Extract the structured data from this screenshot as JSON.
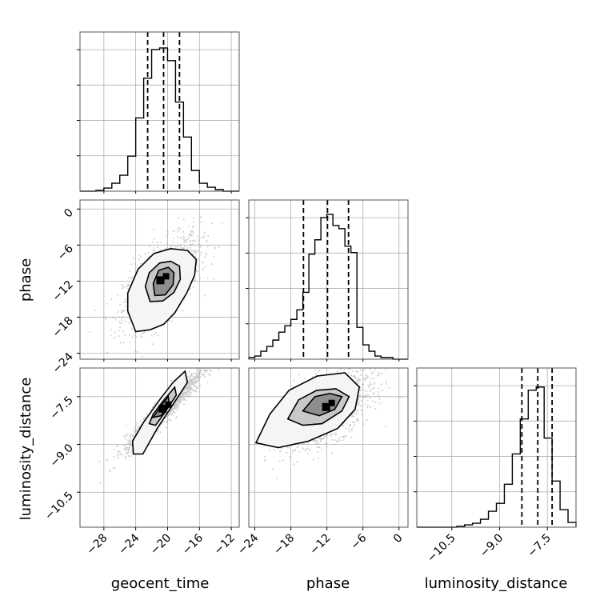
{
  "chart_data": {
    "type": "corner",
    "parameters": [
      "geocent_time",
      "phase",
      "luminosity_distance"
    ],
    "ranges": {
      "geocent_time": [
        -31,
        -11
      ],
      "phase": [
        -25,
        1.5
      ],
      "luminosity_distance": [
        -11.6,
        -6.6
      ]
    },
    "ticks": {
      "geocent_time": [
        -28,
        -24,
        -20,
        -16,
        -12
      ],
      "phase": [
        -24,
        -18,
        -12,
        -6,
        0
      ],
      "luminosity_distance": [
        -10.5,
        -9.0,
        -7.5
      ]
    },
    "tick_labels": {
      "geocent_time": [
        "−28",
        "−24",
        "−20",
        "−16",
        "−12"
      ],
      "phase": [
        "−24",
        "−18",
        "−12",
        "−6",
        "0"
      ],
      "luminosity_distance": [
        "−10.5",
        "−9.0",
        "−7.5"
      ]
    },
    "quantiles": {
      "geocent_time": [
        -22.5,
        -20.5,
        -18.5
      ],
      "phase": [
        -15.9,
        -11.9,
        -8.4
      ],
      "luminosity_distance": [
        -8.3,
        -7.8,
        -7.35
      ]
    },
    "histograms": {
      "geocent_time": {
        "edges": [
          -31,
          -30,
          -29,
          -28,
          -27,
          -26,
          -25,
          -24,
          -23,
          -22,
          -21,
          -20,
          -19,
          -18,
          -17,
          -16,
          -15,
          -14,
          -13,
          -12,
          -11
        ],
        "counts": [
          0,
          0,
          0.005,
          0.02,
          0.05,
          0.1,
          0.22,
          0.46,
          0.71,
          0.89,
          0.9,
          0.82,
          0.56,
          0.34,
          0.13,
          0.05,
          0.025,
          0.01,
          0,
          0
        ]
      },
      "phase": {
        "edges": [
          -25,
          -24,
          -23,
          -22,
          -21,
          -20,
          -19,
          -18,
          -17,
          -16,
          -15,
          -14,
          -13,
          -12,
          -11,
          -10,
          -9,
          -8,
          -7,
          -6,
          -5,
          -4,
          -3,
          -2,
          -1,
          0,
          1,
          1.5
        ],
        "counts": [
          0.01,
          0.02,
          0.05,
          0.08,
          0.12,
          0.17,
          0.21,
          0.25,
          0.31,
          0.42,
          0.66,
          0.75,
          0.89,
          0.91,
          0.84,
          0.82,
          0.71,
          0.67,
          0.2,
          0.09,
          0.05,
          0.02,
          0.01,
          0.01,
          0,
          0,
          0
        ]
      },
      "luminosity_distance": {
        "edges": [
          -11.6,
          -11.35,
          -11.1,
          -10.85,
          -10.6,
          -10.35,
          -10.1,
          -9.85,
          -9.6,
          -9.35,
          -9.1,
          -8.85,
          -8.6,
          -8.35,
          -8.1,
          -7.85,
          -7.6,
          -7.35,
          -7.1,
          -6.85,
          -6.6
        ],
        "counts": [
          0,
          0,
          0,
          0,
          0,
          0.005,
          0.015,
          0.025,
          0.05,
          0.1,
          0.15,
          0.27,
          0.46,
          0.68,
          0.86,
          0.88,
          0.56,
          0.29,
          0.11,
          0.03
        ]
      }
    },
    "pairs": [
      {
        "x": "geocent_time",
        "y": "phase",
        "mean": [
          -20.8,
          -12
        ],
        "std": [
          2.3,
          3.6
        ],
        "rho": 0.62,
        "contours": [
          {
            "level": 0.95,
            "points": [
              [
                -24,
                -20.4
              ],
              [
                -25,
                -17
              ],
              [
                -25,
                -14
              ],
              [
                -23.7,
                -10
              ],
              [
                -21.7,
                -7.4
              ],
              [
                -19.6,
                -6.6
              ],
              [
                -17.5,
                -6.9
              ],
              [
                -16.4,
                -8.4
              ],
              [
                -16.6,
                -11
              ],
              [
                -17.6,
                -14
              ],
              [
                -19.1,
                -17.3
              ],
              [
                -20.5,
                -19.2
              ],
              [
                -22.2,
                -20.1
              ]
            ]
          },
          {
            "level": 0.68,
            "points": [
              [
                -22.2,
                -15.4
              ],
              [
                -22.8,
                -12.9
              ],
              [
                -22.3,
                -10.6
              ],
              [
                -21,
                -9
              ],
              [
                -19.6,
                -8.7
              ],
              [
                -18.5,
                -9.5
              ],
              [
                -18.4,
                -11.7
              ],
              [
                -19.2,
                -13.9
              ],
              [
                -20.6,
                -15.3
              ]
            ]
          },
          {
            "level": 0.39,
            "points": [
              [
                -21.6,
                -14.4
              ],
              [
                -21.8,
                -12.4
              ],
              [
                -21.1,
                -10.2
              ],
              [
                -19.9,
                -9.7
              ],
              [
                -19.2,
                -10.6
              ],
              [
                -19.3,
                -12.6
              ],
              [
                -20.3,
                -14.3
              ]
            ]
          }
        ]
      },
      {
        "x": "geocent_time",
        "y": "luminosity_distance",
        "mean": [
          -20.5,
          -7.9
        ],
        "std": [
          2.3,
          0.6
        ],
        "rho": 0.95,
        "contours": [
          {
            "level": 0.95,
            "points": [
              [
                -24.3,
                -9.3
              ],
              [
                -24.4,
                -8.9
              ],
              [
                -23,
                -8.3
              ],
              [
                -21,
                -7.6
              ],
              [
                -19.3,
                -7.05
              ],
              [
                -17.8,
                -6.7
              ],
              [
                -17.5,
                -7.05
              ],
              [
                -19.2,
                -7.7
              ],
              [
                -21.3,
                -8.5
              ],
              [
                -23.1,
                -9.3
              ]
            ]
          },
          {
            "level": 0.68,
            "points": [
              [
                -22.3,
                -8.35
              ],
              [
                -21.8,
                -8.05
              ],
              [
                -20.6,
                -7.65
              ],
              [
                -19.1,
                -7.2
              ],
              [
                -18.9,
                -7.45
              ],
              [
                -20.2,
                -7.95
              ],
              [
                -21.5,
                -8.4
              ]
            ]
          },
          {
            "level": 0.39,
            "points": [
              [
                -21.8,
                -8.15
              ],
              [
                -20.7,
                -7.75
              ],
              [
                -19.9,
                -7.5
              ],
              [
                -19.8,
                -7.75
              ],
              [
                -20.8,
                -8.1
              ]
            ]
          }
        ]
      },
      {
        "x": "phase",
        "y": "luminosity_distance",
        "mean": [
          -12,
          -7.85
        ],
        "std": [
          3.6,
          0.6
        ],
        "rho": 0.6,
        "contours": [
          {
            "level": 0.95,
            "points": [
              [
                -23.8,
                -8.95
              ],
              [
                -21.5,
                -8.05
              ],
              [
                -18.3,
                -7.3
              ],
              [
                -13.6,
                -6.85
              ],
              [
                -9,
                -6.75
              ],
              [
                -6.6,
                -7.2
              ],
              [
                -7.3,
                -7.9
              ],
              [
                -10.2,
                -8.5
              ],
              [
                -15.1,
                -8.9
              ],
              [
                -20.1,
                -9.1
              ]
            ]
          },
          {
            "level": 0.68,
            "points": [
              [
                -18.5,
                -8.2
              ],
              [
                -16.7,
                -7.6
              ],
              [
                -13.7,
                -7.3
              ],
              [
                -10.5,
                -7.25
              ],
              [
                -8.3,
                -7.5
              ],
              [
                -9.5,
                -7.95
              ],
              [
                -12.8,
                -8.35
              ],
              [
                -16,
                -8.4
              ]
            ]
          },
          {
            "level": 0.39,
            "points": [
              [
                -16,
                -7.95
              ],
              [
                -14,
                -7.5
              ],
              [
                -11.5,
                -7.4
              ],
              [
                -9.5,
                -7.5
              ],
              [
                -10.7,
                -7.9
              ],
              [
                -13.3,
                -8.1
              ]
            ]
          }
        ]
      }
    ],
    "colors": {
      "line": "#000000",
      "grid": "#b0b0b0",
      "spine": "#555555",
      "contour_fill": [
        "#f5f5f5",
        "#c9c9c9",
        "#8e8e8e"
      ],
      "dense": "#000000"
    },
    "grid": true
  }
}
